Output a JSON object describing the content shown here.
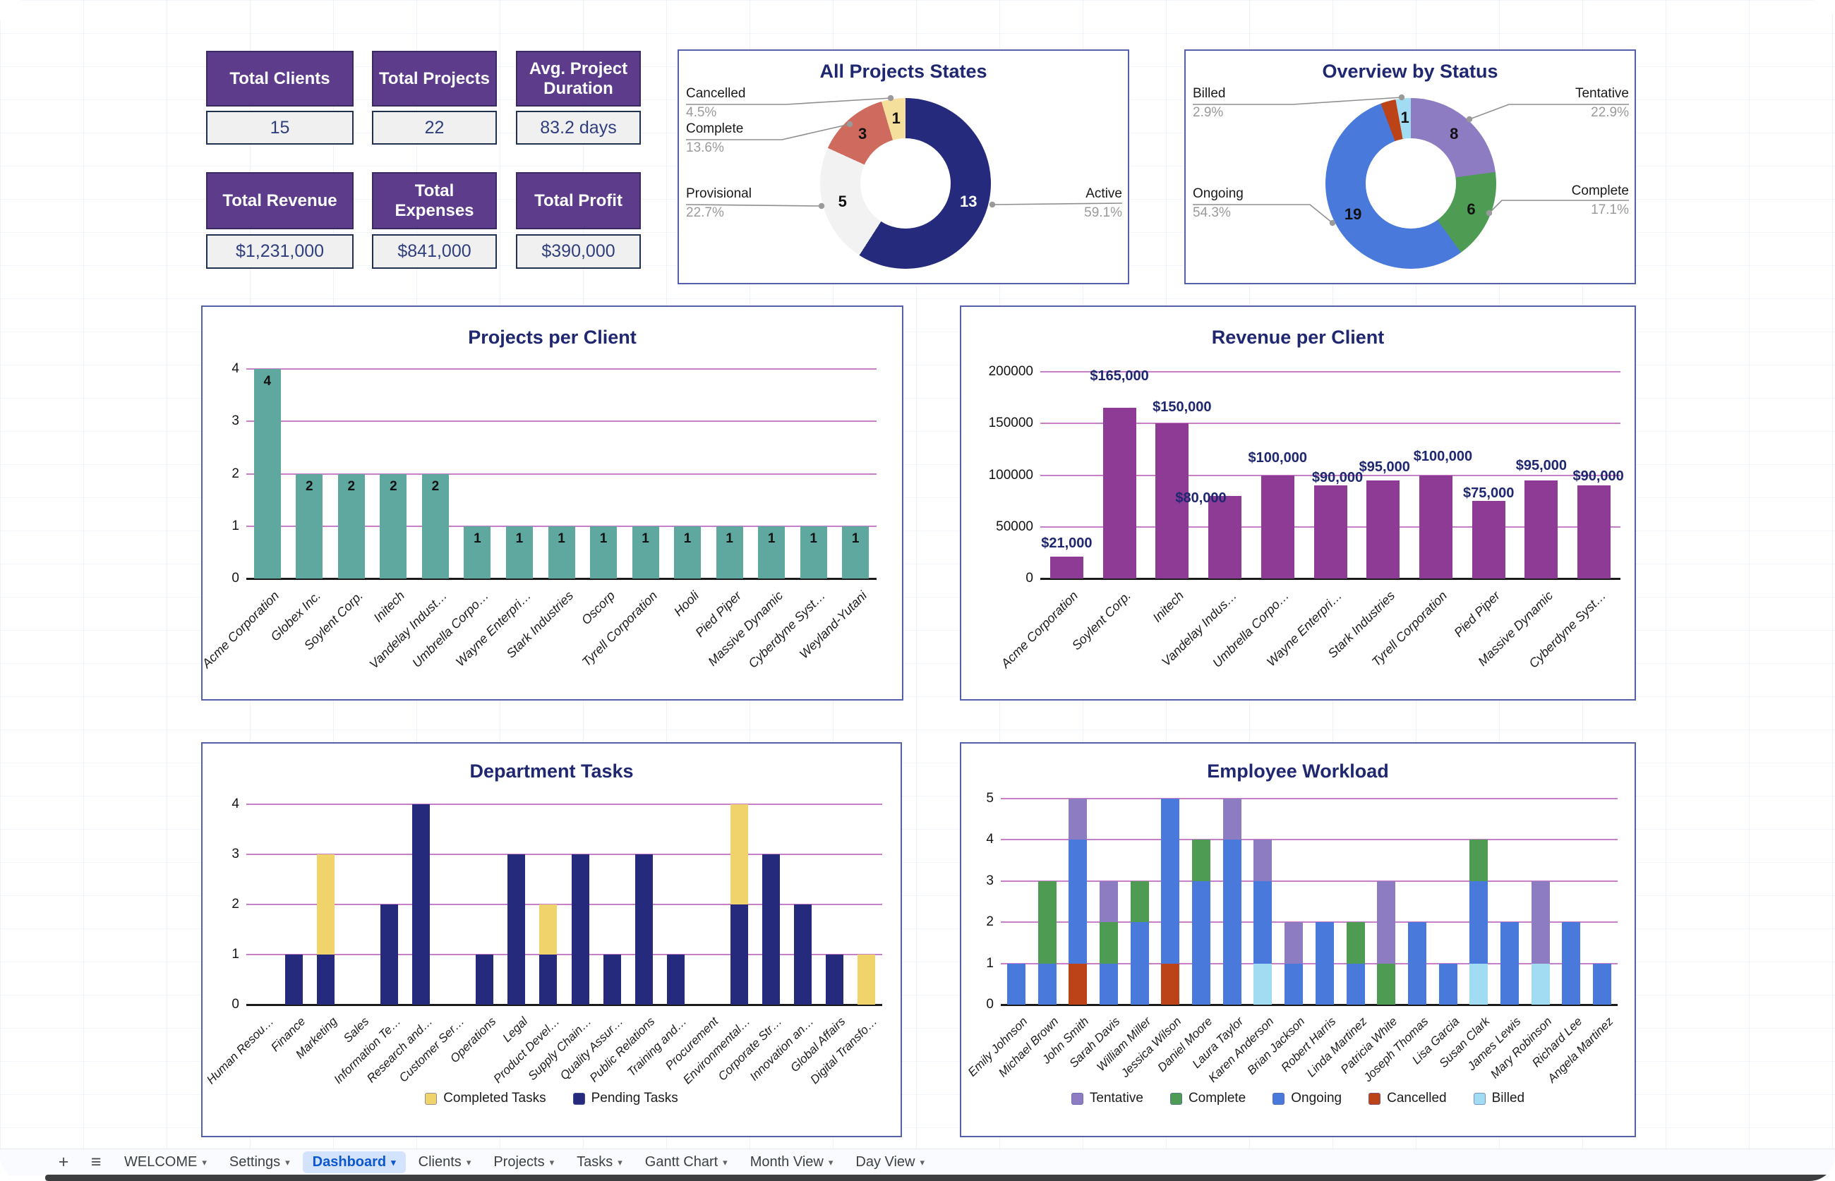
{
  "colors": {
    "navy": "#262A7C",
    "teal": "#5FA8A0",
    "magenta": "#8E3B96",
    "task_yellow": "#F0D36B",
    "grid_pink": "#C77FC7",
    "kpi_purple": "#5C3C8B",
    "title_navy": "#1F2770",
    "active_tab_blue": "#0b57d0",
    "status_colors": {
      "tentative": "#8E7CC3",
      "complete": "#4E9C53",
      "ongoing": "#4A79DC",
      "cancelled": "#BC4318",
      "billed": "#A2DCF3"
    }
  },
  "icons": {
    "add_sheet": "+",
    "all_sheets_menu": "≡",
    "tab_dropdown": "▾"
  },
  "kpis": {
    "cards": [
      {
        "label": "Total Clients",
        "value": "15"
      },
      {
        "label": "Total Projects",
        "value": "22"
      },
      {
        "label": "Avg. Project Duration",
        "value": "83.2 days"
      },
      {
        "label": "Total Revenue",
        "value": "$1,231,000"
      },
      {
        "label": "Total Expenses",
        "value": "$841,000"
      },
      {
        "label": "Total Profit",
        "value": "$390,000"
      }
    ]
  },
  "chart_data": [
    {
      "id": "all_projects_states",
      "type": "pie",
      "title": "All Projects States",
      "legend_position": "labeled-callouts",
      "slices": [
        {
          "label": "Active",
          "value": 13,
          "pct": "59.1%",
          "color": "#262A7C",
          "value_color": "#ffffff"
        },
        {
          "label": "Provisional",
          "value": 5,
          "pct": "22.7%",
          "color": "#F2F2F2",
          "value_color": "#111111"
        },
        {
          "label": "Complete",
          "value": 3,
          "pct": "13.6%",
          "color": "#CF6B5E",
          "value_color": "#111111"
        },
        {
          "label": "Cancelled",
          "value": 1,
          "pct": "4.5%",
          "color": "#F4DF9C",
          "value_color": "#111111"
        }
      ]
    },
    {
      "id": "overview_by_status",
      "type": "pie",
      "title": "Overview by Status",
      "legend_position": "labeled-callouts",
      "slices": [
        {
          "label": "Tentative",
          "value": 8,
          "pct": "22.9%",
          "color": "#8E7CC3",
          "value_color": "#111111"
        },
        {
          "label": "Complete",
          "value": 6,
          "pct": "17.1%",
          "color": "#4E9C53",
          "value_color": "#111111"
        },
        {
          "label": "Ongoing",
          "value": 19,
          "pct": "54.3%",
          "color": "#4A79DC",
          "value_color": "#111111"
        },
        {
          "label": "Cancelled",
          "value": 1,
          "pct": "",
          "color": "#BC4318",
          "show_value": false
        },
        {
          "label": "Billed",
          "value": 1,
          "pct": "2.9%",
          "color": "#A2DCF3",
          "value_color": "#111111"
        }
      ]
    },
    {
      "id": "projects_per_client",
      "type": "bar",
      "title": "Projects per Client",
      "ylim": [
        0,
        4
      ],
      "yticks": [
        0,
        1,
        2,
        3,
        4
      ],
      "grid": true,
      "bar_color": "#5FA8A0",
      "categories": [
        "Acme Corporation",
        "Globex Inc.",
        "Soylent Corp.",
        "Initech",
        "Vandelay Indust…",
        "Umbrella Corpo…",
        "Wayne Enterpri…",
        "Stark Industries",
        "Oscorp",
        "Tyrell Corporation",
        "Hooli",
        "Pied Piper",
        "Massive Dynamic",
        "Cyberdyne Syst…",
        "Weyland-Yutani"
      ],
      "values": [
        4,
        2,
        2,
        2,
        2,
        1,
        1,
        1,
        1,
        1,
        1,
        1,
        1,
        1,
        1
      ]
    },
    {
      "id": "revenue_per_client",
      "type": "bar",
      "title": "Revenue per Client",
      "ylim": [
        0,
        200000
      ],
      "yticks": [
        0,
        50000,
        100000,
        150000,
        200000
      ],
      "ytick_labels": [
        "0",
        "50000",
        "100000",
        "150000",
        "200000"
      ],
      "grid": true,
      "bar_color": "#8E3B96",
      "categories": [
        "Acme Corporation",
        "Soylent Corp.",
        "Initech",
        "Vandelay Indus…",
        "Umbrella Corpo…",
        "Wayne Enterpri…",
        "Stark Industries",
        "Tyrell Corporation",
        "Pied Piper",
        "Massive Dynamic",
        "Cyberdyne Syst…"
      ],
      "values": [
        21000,
        165000,
        150000,
        80000,
        100000,
        90000,
        95000,
        100000,
        75000,
        95000,
        90000
      ],
      "value_labels": [
        "$21,000",
        "$165,000",
        "$150,000",
        "$80,000",
        "$100,000",
        "$90,000",
        "$95,000",
        "$100,000",
        "$75,000",
        "$95,000",
        "$90,000"
      ]
    },
    {
      "id": "department_tasks",
      "type": "bar",
      "subtype": "stacked",
      "title": "Department Tasks",
      "ylim": [
        0,
        4
      ],
      "yticks": [
        0,
        1,
        2,
        3,
        4
      ],
      "grid": true,
      "legend": [
        {
          "label": "Completed Tasks",
          "color": "#F0D36B"
        },
        {
          "label": "Pending Tasks",
          "color": "#262A7C"
        }
      ],
      "categories": [
        "Human Resou…",
        "Finance",
        "Marketing",
        "Sales",
        "Information Te…",
        "Research and…",
        "Customer Ser…",
        "Operations",
        "Legal",
        "Product Devel…",
        "Supply Chain…",
        "Quality Assur…",
        "Public Relations",
        "Training and…",
        "Procurement",
        "Environmental…",
        "Corporate Str…",
        "Innovation an…",
        "Global Affairs",
        "Digital Transfo…"
      ],
      "series": [
        {
          "name": "Pending Tasks",
          "color": "#262A7C",
          "values": [
            0,
            1,
            1,
            0,
            2,
            4,
            0,
            1,
            3,
            1,
            3,
            1,
            3,
            1,
            0,
            2,
            3,
            2,
            1,
            0
          ]
        },
        {
          "name": "Completed Tasks",
          "color": "#F0D36B",
          "values": [
            0,
            0,
            2,
            0,
            0,
            0,
            0,
            0,
            0,
            1,
            0,
            0,
            0,
            0,
            0,
            2,
            0,
            0,
            0,
            1
          ]
        }
      ]
    },
    {
      "id": "employee_workload",
      "type": "bar",
      "subtype": "stacked",
      "title": "Employee Workload",
      "ylim": [
        0,
        5
      ],
      "yticks": [
        0,
        1,
        2,
        3,
        4,
        5
      ],
      "grid": true,
      "legend": [
        {
          "label": "Tentative",
          "color": "#8E7CC3"
        },
        {
          "label": "Complete",
          "color": "#4E9C53"
        },
        {
          "label": "Ongoing",
          "color": "#4A79DC"
        },
        {
          "label": "Cancelled",
          "color": "#BC4318"
        },
        {
          "label": "Billed",
          "color": "#A2DCF3"
        }
      ],
      "categories": [
        "Emily Johnson",
        "Michael Brown",
        "John Smith",
        "Sarah Davis",
        "William Miller",
        "Jessica Wilson",
        "Daniel Moore",
        "Laura Taylor",
        "Karen Anderson",
        "Brian Jackson",
        "Robert Harris",
        "Linda Martinez",
        "Patricia White",
        "Joseph Thomas",
        "Lisa Garcia",
        "Susan Clark",
        "James Lewis",
        "Mary Robinson",
        "Richard Lee",
        "Angela Martinez"
      ],
      "bars": [
        [
          {
            "s": "ongoing",
            "v": 1
          }
        ],
        [
          {
            "s": "ongoing",
            "v": 1
          },
          {
            "s": "complete",
            "v": 2
          }
        ],
        [
          {
            "s": "cancelled",
            "v": 1
          },
          {
            "s": "ongoing",
            "v": 3
          },
          {
            "s": "tentative",
            "v": 1
          }
        ],
        [
          {
            "s": "ongoing",
            "v": 1
          },
          {
            "s": "complete",
            "v": 1
          },
          {
            "s": "tentative",
            "v": 1
          }
        ],
        [
          {
            "s": "ongoing",
            "v": 2
          },
          {
            "s": "complete",
            "v": 1
          }
        ],
        [
          {
            "s": "cancelled",
            "v": 1
          },
          {
            "s": "ongoing",
            "v": 4
          }
        ],
        [
          {
            "s": "ongoing",
            "v": 3
          },
          {
            "s": "complete",
            "v": 1
          }
        ],
        [
          {
            "s": "ongoing",
            "v": 4
          },
          {
            "s": "tentative",
            "v": 1
          }
        ],
        [
          {
            "s": "billed",
            "v": 1
          },
          {
            "s": "ongoing",
            "v": 2
          },
          {
            "s": "tentative",
            "v": 1
          }
        ],
        [
          {
            "s": "ongoing",
            "v": 1
          },
          {
            "s": "tentative",
            "v": 1
          }
        ],
        [
          {
            "s": "ongoing",
            "v": 2
          }
        ],
        [
          {
            "s": "ongoing",
            "v": 1
          },
          {
            "s": "complete",
            "v": 1
          }
        ],
        [
          {
            "s": "complete",
            "v": 1
          },
          {
            "s": "tentative",
            "v": 2
          }
        ],
        [
          {
            "s": "ongoing",
            "v": 2
          }
        ],
        [
          {
            "s": "ongoing",
            "v": 1
          }
        ],
        [
          {
            "s": "billed",
            "v": 1
          },
          {
            "s": "ongoing",
            "v": 2
          },
          {
            "s": "complete",
            "v": 1
          }
        ],
        [
          {
            "s": "ongoing",
            "v": 2
          }
        ],
        [
          {
            "s": "billed",
            "v": 1
          },
          {
            "s": "tentative",
            "v": 2
          }
        ],
        [
          {
            "s": "ongoing",
            "v": 2
          }
        ],
        [
          {
            "s": "ongoing",
            "v": 1
          }
        ]
      ]
    }
  ],
  "tabbar": {
    "tabs": [
      {
        "label": "WELCOME",
        "active": false
      },
      {
        "label": "Settings",
        "active": false
      },
      {
        "label": "Dashboard",
        "active": true
      },
      {
        "label": "Clients",
        "active": false
      },
      {
        "label": "Projects",
        "active": false
      },
      {
        "label": "Tasks",
        "active": false
      },
      {
        "label": "Gantt Chart",
        "active": false
      },
      {
        "label": "Month View",
        "active": false
      },
      {
        "label": "Day View",
        "active": false
      }
    ]
  }
}
